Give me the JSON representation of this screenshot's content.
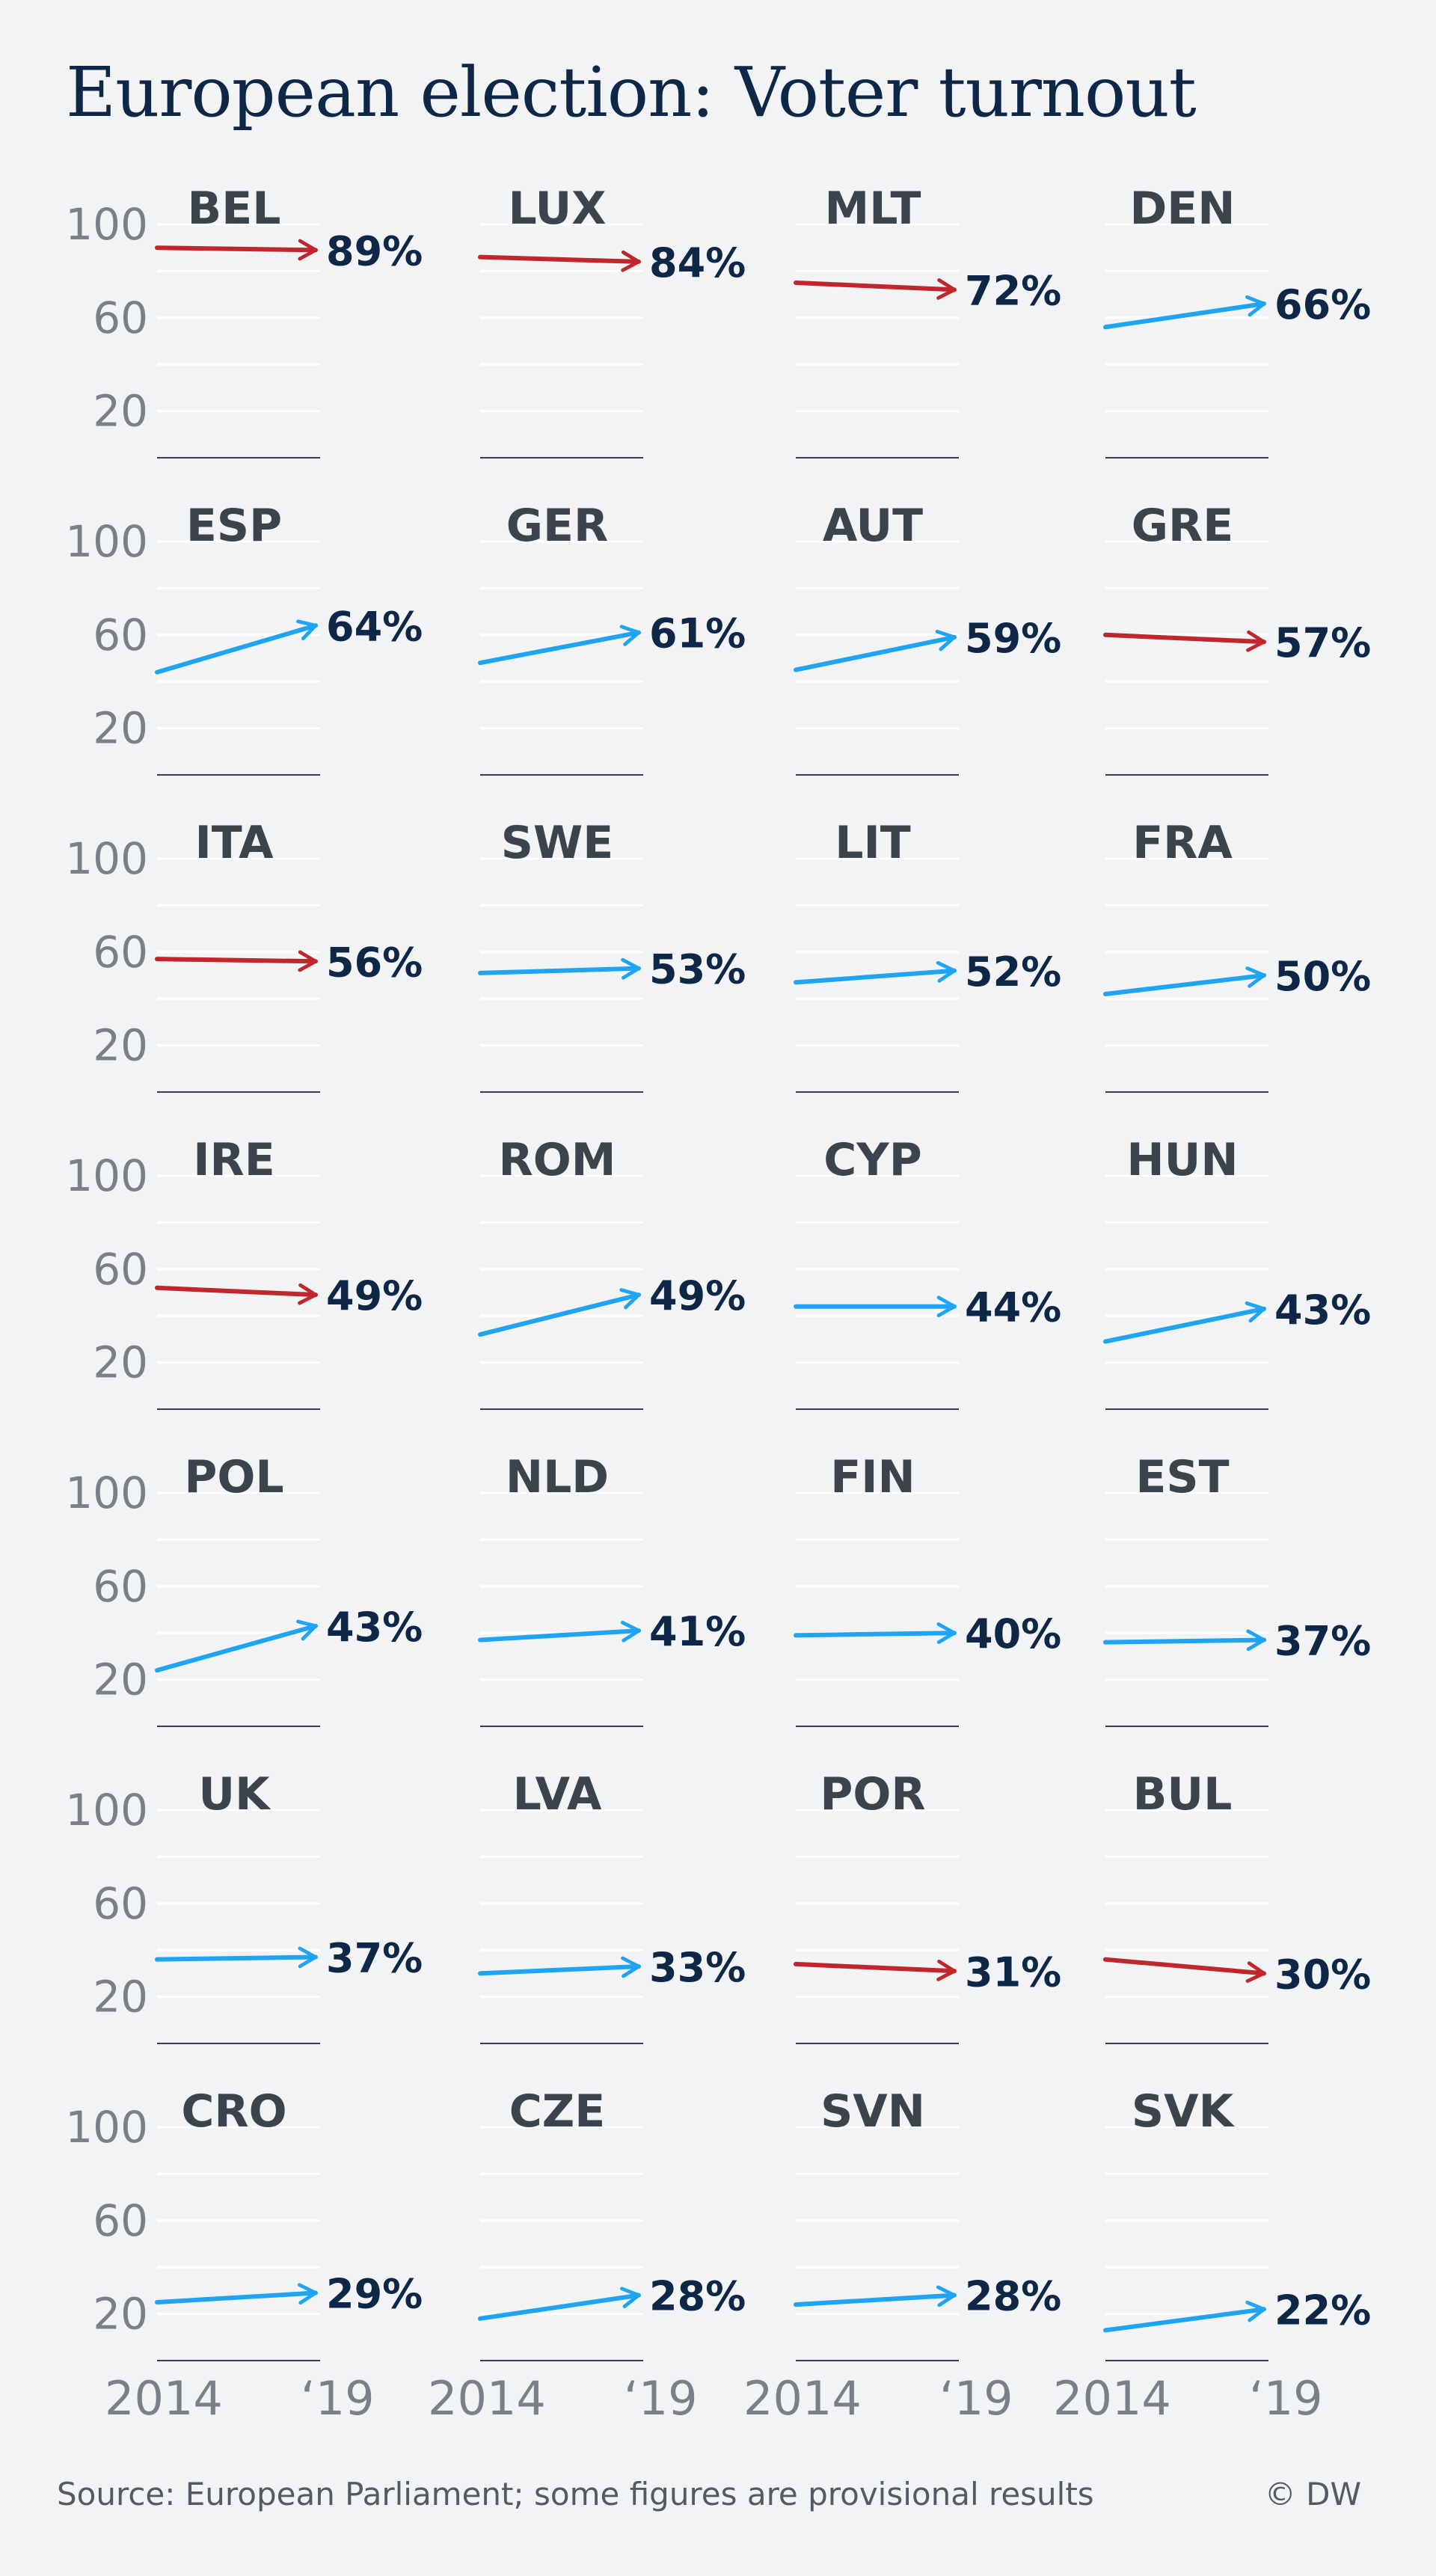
{
  "header": {
    "title": "European election: Voter turnout"
  },
  "footer": {
    "source": "Source: European Parliament; some figures are provisional results",
    "credit": "© DW"
  },
  "colors": {
    "increase": "#1ea4f2",
    "decrease": "#c0272d",
    "text": "#0f2747",
    "grid": "#ffffff",
    "baseline": "#3b3f44"
  },
  "chart_data": {
    "type": "line",
    "title": "European election: Voter turnout",
    "layout": "small-multiples",
    "x": [
      "2014",
      "‘19"
    ],
    "y_ticks": [
      "100",
      "60",
      "20"
    ],
    "ylim": [
      0,
      110
    ],
    "series": [
      {
        "name": "BEL",
        "values": [
          90,
          89
        ],
        "label": "89%",
        "trend": "down"
      },
      {
        "name": "LUX",
        "values": [
          86,
          84
        ],
        "label": "84%",
        "trend": "down"
      },
      {
        "name": "MLT",
        "values": [
          75,
          72
        ],
        "label": "72%",
        "trend": "down"
      },
      {
        "name": "DEN",
        "values": [
          56,
          66
        ],
        "label": "66%",
        "trend": "up"
      },
      {
        "name": "ESP",
        "values": [
          44,
          64
        ],
        "label": "64%",
        "trend": "up"
      },
      {
        "name": "GER",
        "values": [
          48,
          61
        ],
        "label": "61%",
        "trend": "up"
      },
      {
        "name": "AUT",
        "values": [
          45,
          59
        ],
        "label": "59%",
        "trend": "up"
      },
      {
        "name": "GRE",
        "values": [
          60,
          57
        ],
        "label": "57%",
        "trend": "down"
      },
      {
        "name": "ITA",
        "values": [
          57,
          56
        ],
        "label": "56%",
        "trend": "down"
      },
      {
        "name": "SWE",
        "values": [
          51,
          53
        ],
        "label": "53%",
        "trend": "up"
      },
      {
        "name": "LIT",
        "values": [
          47,
          52
        ],
        "label": "52%",
        "trend": "up"
      },
      {
        "name": "FRA",
        "values": [
          42,
          50
        ],
        "label": "50%",
        "trend": "up"
      },
      {
        "name": "IRE",
        "values": [
          52,
          49
        ],
        "label": "49%",
        "trend": "down"
      },
      {
        "name": "ROM",
        "values": [
          32,
          49
        ],
        "label": "49%",
        "trend": "up"
      },
      {
        "name": "CYP",
        "values": [
          44,
          44
        ],
        "label": "44%",
        "trend": "up"
      },
      {
        "name": "HUN",
        "values": [
          29,
          43
        ],
        "label": "43%",
        "trend": "up"
      },
      {
        "name": "POL",
        "values": [
          24,
          43
        ],
        "label": "43%",
        "trend": "up"
      },
      {
        "name": "NLD",
        "values": [
          37,
          41
        ],
        "label": "41%",
        "trend": "up"
      },
      {
        "name": "FIN",
        "values": [
          39,
          40
        ],
        "label": "40%",
        "trend": "up"
      },
      {
        "name": "EST",
        "values": [
          36,
          37
        ],
        "label": "37%",
        "trend": "up"
      },
      {
        "name": "UK",
        "values": [
          36,
          37
        ],
        "label": "37%",
        "trend": "up"
      },
      {
        "name": "LVA",
        "values": [
          30,
          33
        ],
        "label": "33%",
        "trend": "up"
      },
      {
        "name": "POR",
        "values": [
          34,
          31
        ],
        "label": "31%",
        "trend": "down"
      },
      {
        "name": "BUL",
        "values": [
          36,
          30
        ],
        "label": "30%",
        "trend": "down"
      },
      {
        "name": "CRO",
        "values": [
          25,
          29
        ],
        "label": "29%",
        "trend": "up"
      },
      {
        "name": "CZE",
        "values": [
          18,
          28
        ],
        "label": "28%",
        "trend": "up"
      },
      {
        "name": "SVN",
        "values": [
          24,
          28
        ],
        "label": "28%",
        "trend": "up"
      },
      {
        "name": "SVK",
        "values": [
          13,
          22
        ],
        "label": "22%",
        "trend": "up"
      }
    ]
  }
}
